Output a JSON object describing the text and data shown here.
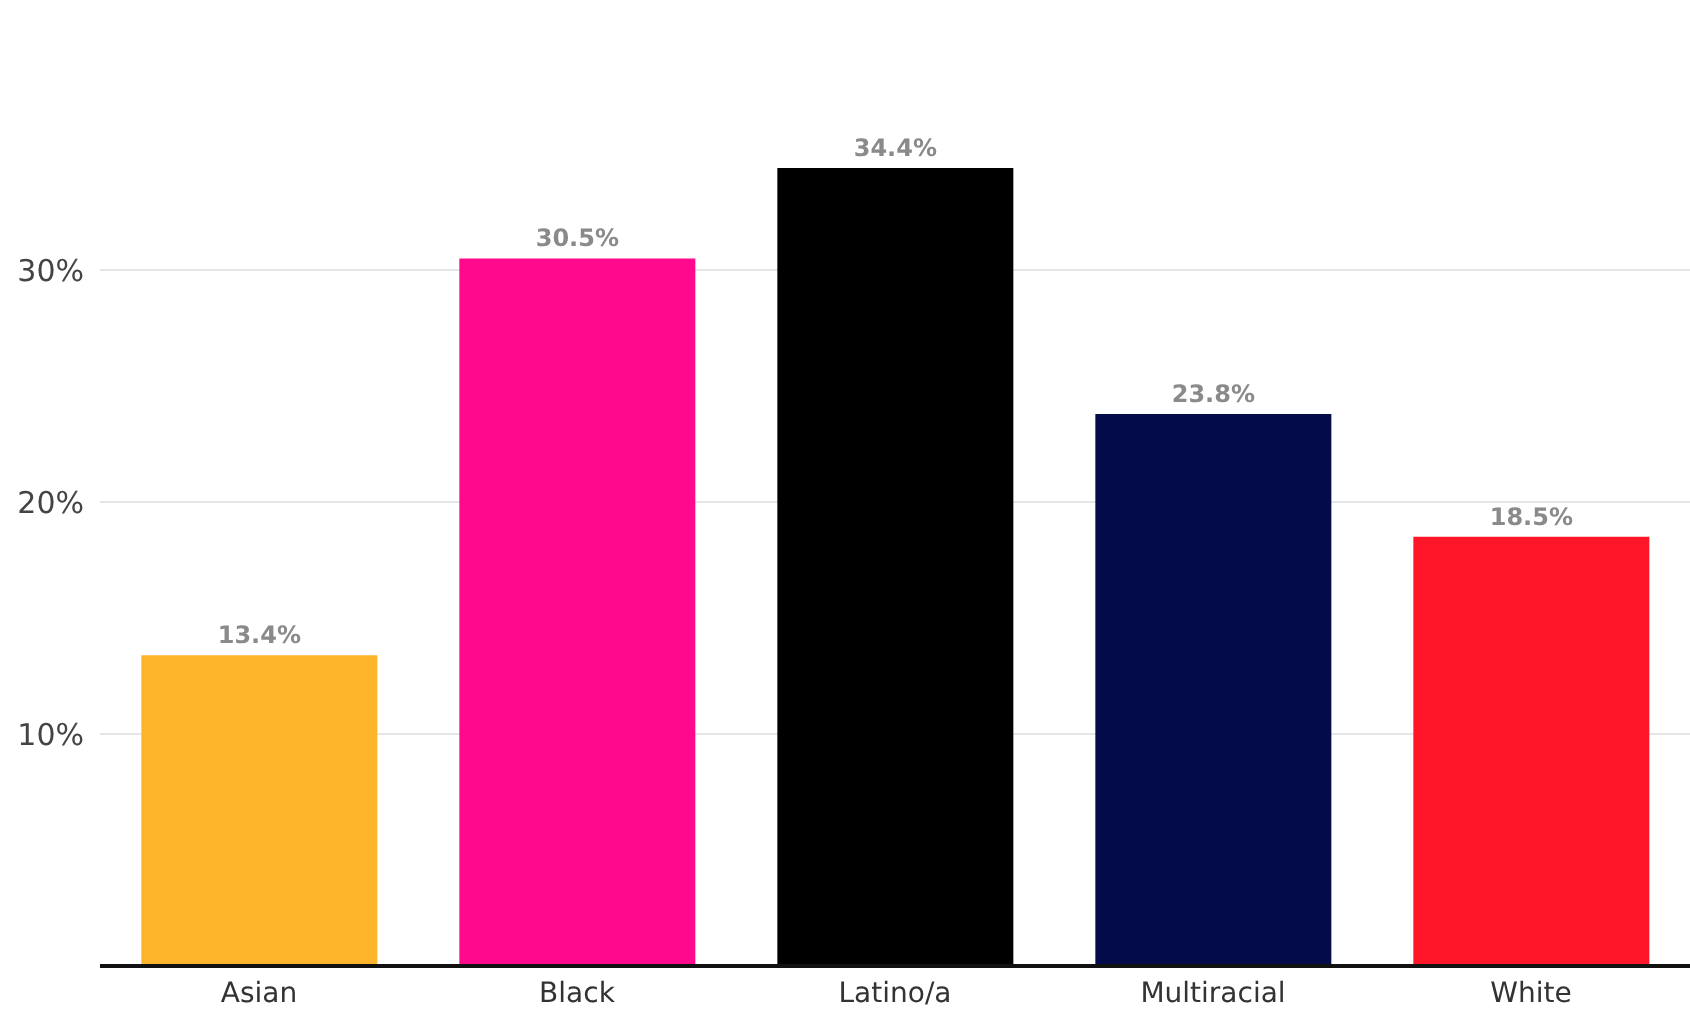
{
  "chart_data": {
    "type": "bar",
    "categories": [
      "Asian",
      "Black",
      "Latino/a",
      "Multiracial",
      "White"
    ],
    "values": [
      13.4,
      30.5,
      34.4,
      23.8,
      18.5
    ],
    "colors": [
      "#fdb32a",
      "#ff0a8c",
      "#000000",
      "#030b4a",
      "#ff1628"
    ],
    "ylim": [
      0,
      34.4
    ],
    "yticks": [
      {
        "value": 10,
        "label": "10%"
      },
      {
        "value": 20,
        "label": "20%"
      },
      {
        "value": 30,
        "label": "30%"
      }
    ],
    "value_labels": [
      "13.4%",
      "30.5%",
      "34.4%",
      "23.8%",
      "18.5%"
    ],
    "grid": "y"
  }
}
